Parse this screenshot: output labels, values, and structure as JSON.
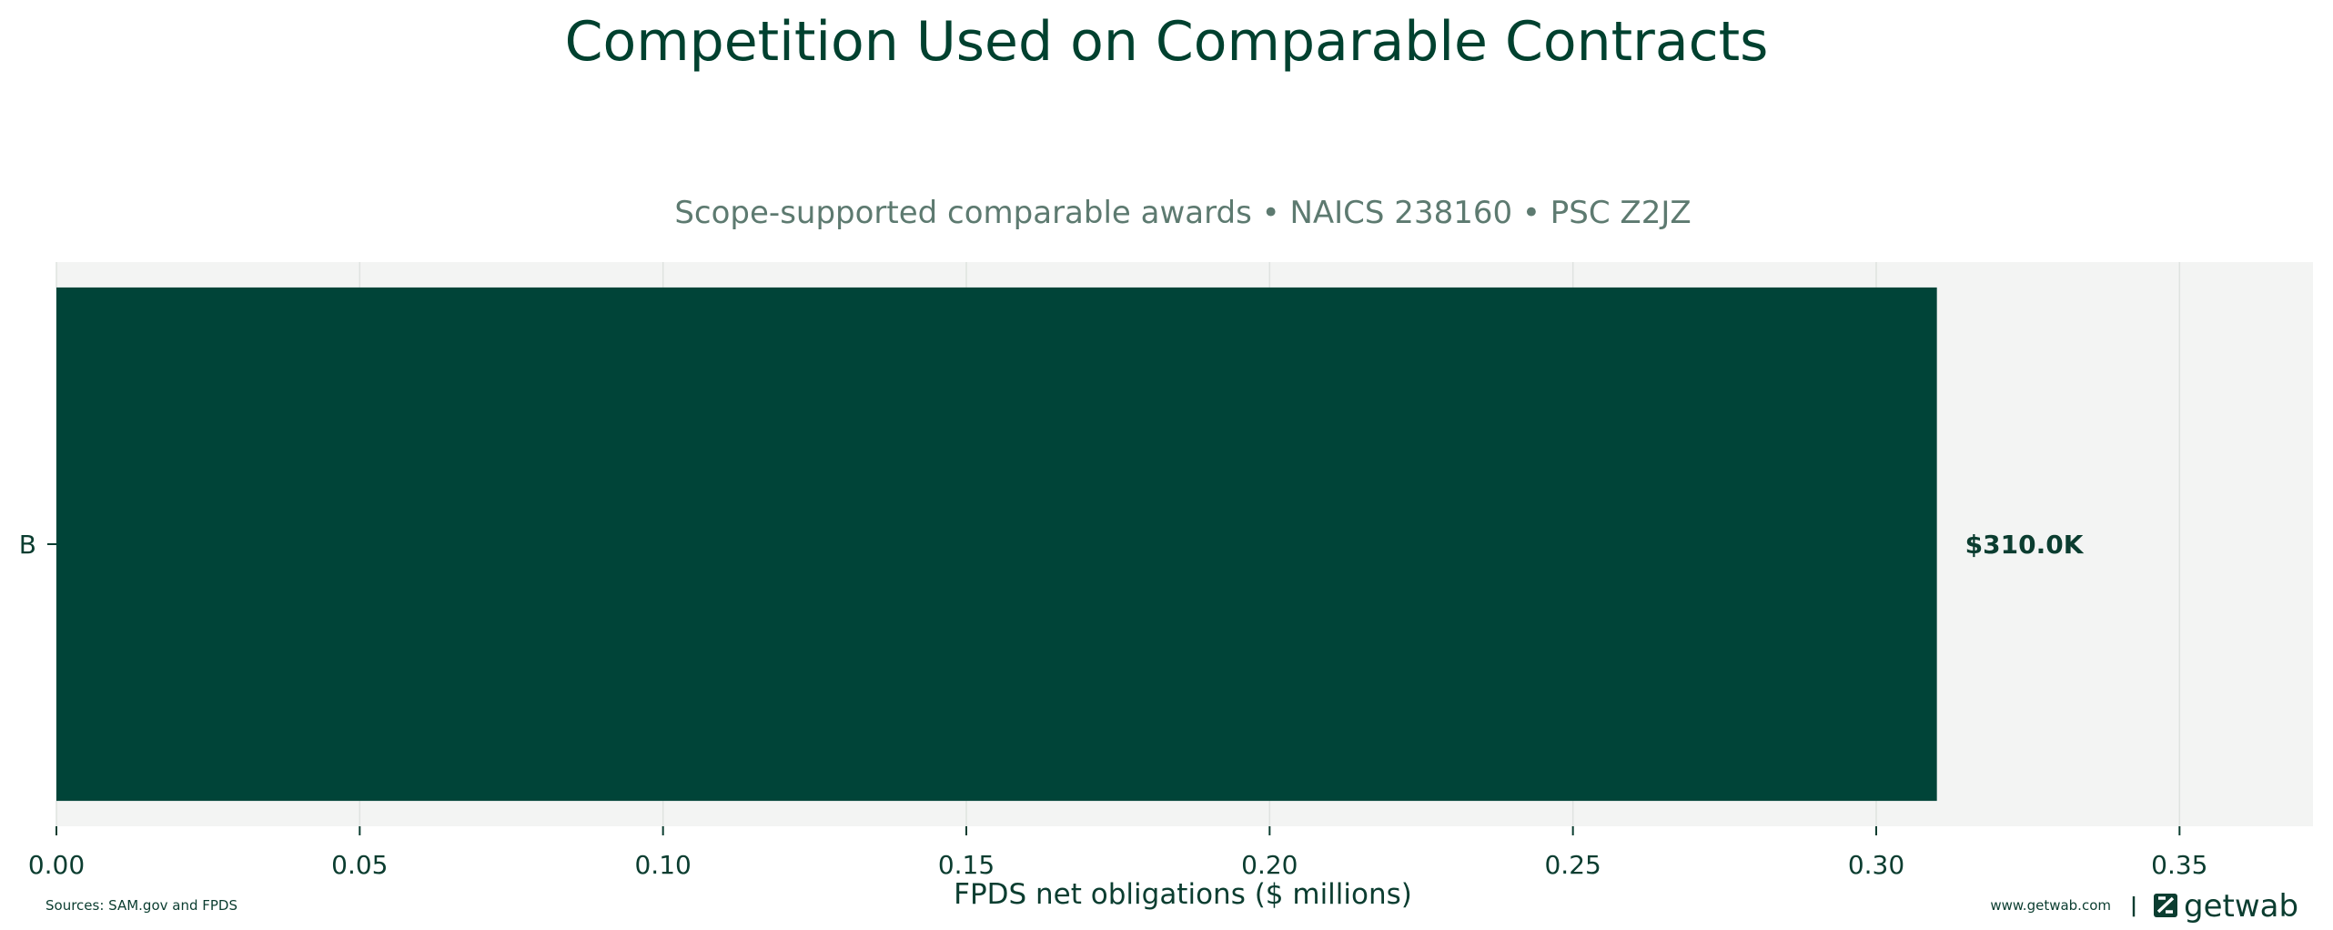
{
  "chart_data": {
    "type": "bar",
    "orientation": "horizontal",
    "title": "Competition Used on Comparable Contracts",
    "subtitle": "Scope-supported comparable awards • NAICS 238160 • PSC Z2JZ",
    "categories": [
      "B"
    ],
    "values": [
      0.31
    ],
    "value_labels": [
      "$310.0K"
    ],
    "xlabel": "FPDS net obligations ($ millions)",
    "ylabel": "",
    "xlim": [
      0,
      0.372
    ],
    "xticks": [
      0.0,
      0.05,
      0.1,
      0.15,
      0.2,
      0.25,
      0.3,
      0.35
    ],
    "xtick_labels": [
      "0.00",
      "0.05",
      "0.10",
      "0.15",
      "0.20",
      "0.25",
      "0.30",
      "0.35"
    ],
    "grid": true,
    "legend": "none"
  },
  "footer": {
    "sources": "Sources: SAM.gov and FPDS",
    "website": "www.getwab.com",
    "separator": "|",
    "logo": "getwab",
    "logo_icon": "getwab-logo-icon"
  },
  "colors": {
    "bar": "#004438",
    "plot_background": "#f3f4f3",
    "grid": "#dfe3e0",
    "text": "#0b3d30",
    "title": "#00412f",
    "subtitle": "#5d7a70"
  }
}
